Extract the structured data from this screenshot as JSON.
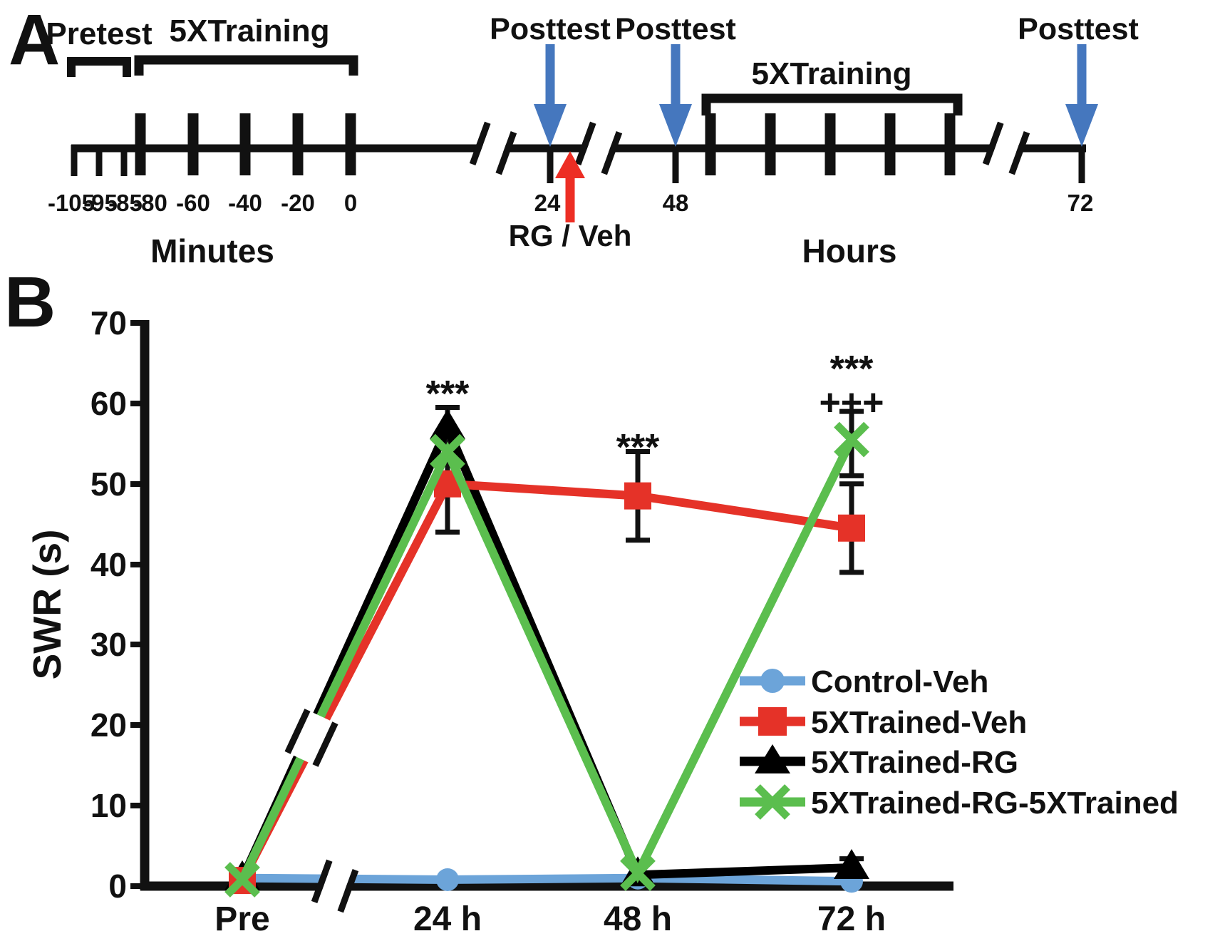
{
  "panelA": {
    "label": "A",
    "pretest_label": "Pretest",
    "training1_label": "5XTraining",
    "training2_label": "5XTraining",
    "posttest_label_1": "Posttest",
    "posttest_label_2": "Posttest",
    "posttest_label_3": "Posttest",
    "rg_veh_label": "RG / Veh",
    "minute_ticks": [
      "-105",
      "-95",
      "-85",
      "-80",
      "-60",
      "-40",
      "-20",
      "0"
    ],
    "hour_ticks": [
      "24",
      "48",
      "72"
    ],
    "minutes_label": "Minutes",
    "hours_label": "Hours",
    "arrow_color": "#4577BE",
    "red_arrow_color": "#ED2E24"
  },
  "panelB": {
    "label": "B",
    "ylabel": "SWR (s)",
    "y_ticks": [
      "70",
      "60",
      "50",
      "40",
      "30",
      "20",
      "10",
      "0"
    ],
    "x_ticks": [
      "Pre",
      "24 h",
      "48 h",
      "72 h"
    ],
    "annotation_24h": "***",
    "annotation_48h": "***",
    "annotation_72h_star": "***",
    "annotation_72h_plus": "+++"
  },
  "chart_data": {
    "type": "line",
    "categories": [
      "Pre",
      "24 h",
      "48 h",
      "72 h"
    ],
    "ylabel": "SWR (s)",
    "ylim": [
      0,
      70
    ],
    "grid": false,
    "legend_position": "lower right",
    "axis_breaks": [
      "x-axis between Pre and 24 h",
      "rising line segments between Pre and 24 h"
    ],
    "series": [
      {
        "name": "Control-Veh",
        "color": "#6CA4D9",
        "marker": "circle",
        "values": [
          1.0,
          0.8,
          1.0,
          0.6
        ],
        "error_bars": []
      },
      {
        "name": "5XTrained-Veh",
        "color": "#E53228",
        "marker": "square",
        "values": [
          0.7,
          50,
          48.5,
          44.5
        ],
        "error_bars": [
          {
            "x": 2,
            "lo": 43,
            "hi": 54
          },
          {
            "x": 3,
            "lo": 39,
            "hi": 50
          }
        ]
      },
      {
        "name": "5XTrained-RG",
        "color": "#000000",
        "marker": "triangle",
        "values": [
          0.9,
          57,
          1.4,
          2.3
        ],
        "error_bars": [
          {
            "x": 1,
            "lo": 44,
            "hi": 59.5
          },
          {
            "x": 3,
            "lo": 1.5,
            "hi": 3.4
          }
        ]
      },
      {
        "name": "5XTrained-RG-5XTrained",
        "color": "#5BBE4E",
        "marker": "x",
        "values": [
          0.8,
          54,
          1.6,
          55.5
        ],
        "error_bars": [
          {
            "x": 3,
            "lo": 51,
            "hi": 59
          }
        ]
      }
    ]
  }
}
